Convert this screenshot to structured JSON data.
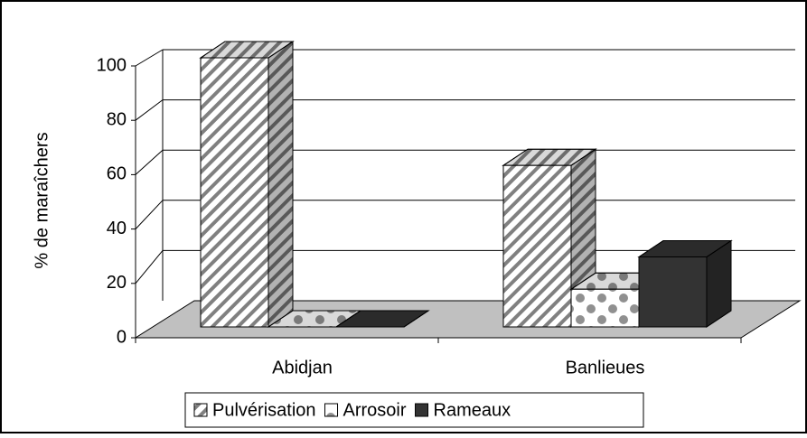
{
  "chart_data": {
    "type": "bar3d",
    "y_label": "% de maraîchers",
    "categories": [
      "Abidjan",
      "Banlieues"
    ],
    "series": [
      {
        "name": "Pulvérisation",
        "color": "#808080",
        "pattern": "hatch",
        "values": [
          100,
          60
        ]
      },
      {
        "name": "Arrosoir",
        "color": "#909090",
        "pattern": "dots",
        "values": [
          0,
          14
        ]
      },
      {
        "name": "Rameaux",
        "color": "#333333",
        "pattern": "solid",
        "values": [
          0,
          26
        ]
      }
    ],
    "ylim": [
      0,
      100
    ],
    "yticks": [
      0,
      20,
      40,
      60,
      80,
      100
    ],
    "grid": true,
    "legend": "bottom"
  }
}
